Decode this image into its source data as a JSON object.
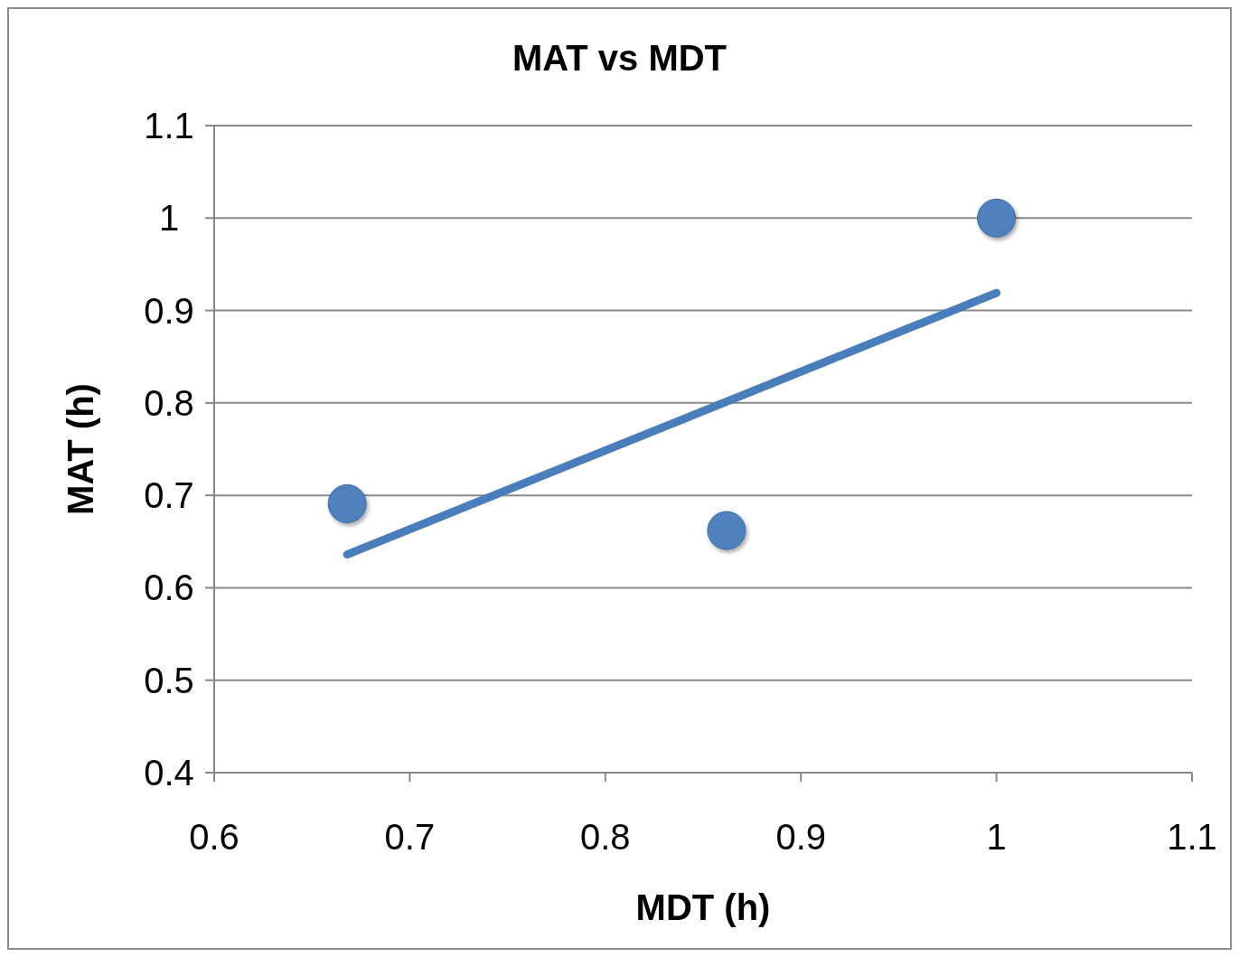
{
  "chart_data": {
    "type": "scatter",
    "title": "MAT vs MDT",
    "xlabel": "MDT (h)",
    "ylabel": "MAT (h)",
    "series": [
      {
        "color": "#4f81bd",
        "marker": "circle",
        "x": [
          0.668,
          0.862,
          1.0
        ],
        "values": [
          0.691,
          0.662,
          1.0
        ]
      },
      {
        "type": "line",
        "color": "#4a7ebb",
        "x": [
          0.668,
          1.0
        ],
        "values": [
          0.636,
          0.919
        ]
      }
    ],
    "xlim": [
      0.6,
      1.1
    ],
    "xticks": [
      0.6,
      0.7,
      0.8,
      0.9,
      1,
      1.1
    ],
    "ylim": [
      0.4,
      1.1
    ],
    "yticks": [
      0.4,
      0.5,
      0.6,
      0.7,
      0.8,
      0.9,
      1,
      1.1
    ],
    "grid": "y",
    "line_style": "solid"
  }
}
